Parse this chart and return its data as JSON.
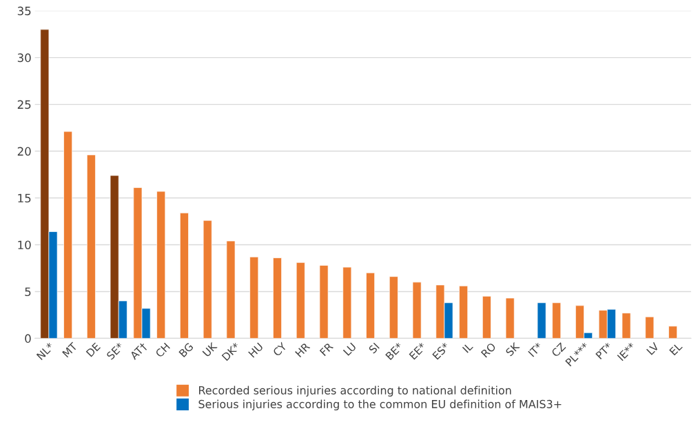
{
  "chart_data": {
    "type": "bar",
    "categories": [
      "NL*",
      "MT",
      "DE",
      "SE*",
      "AT†",
      "CH",
      "BG",
      "UK",
      "DK*",
      "HU",
      "CY",
      "HR",
      "FR",
      "LU",
      "SI",
      "BE*",
      "EE*",
      "ES*",
      "IL",
      "RO",
      "SK",
      "IT*",
      "CZ",
      "PL***",
      "PT*",
      "IE**",
      "LV",
      "EL"
    ],
    "series": [
      {
        "name": "Recorded serious injuries according to national definition",
        "color": "#ed7d31",
        "colors": [
          "#843c0c",
          "#ed7d31",
          "#ed7d31",
          "#843c0c",
          "#ed7d31",
          "#ed7d31",
          "#ed7d31",
          "#ed7d31",
          "#ed7d31",
          "#ed7d31",
          "#ed7d31",
          "#ed7d31",
          "#ed7d31",
          "#ed7d31",
          "#ed7d31",
          "#ed7d31",
          "#ed7d31",
          "#ed7d31",
          "#ed7d31",
          "#ed7d31",
          "#ed7d31",
          "#ed7d31",
          "#ed7d31",
          "#ed7d31",
          "#ed7d31",
          "#ed7d31",
          "#ed7d31",
          "#ed7d31"
        ],
        "values": [
          33.0,
          22.1,
          19.6,
          17.4,
          16.1,
          15.7,
          13.4,
          12.6,
          10.4,
          8.7,
          8.6,
          8.1,
          7.8,
          7.6,
          7.0,
          6.6,
          6.0,
          5.7,
          5.6,
          4.5,
          4.3,
          null,
          3.8,
          3.5,
          3.0,
          2.7,
          2.3,
          1.3
        ]
      },
      {
        "name": "Serious injuries according to the common EU definition of MAIS3+",
        "color": "#0070c0",
        "values": [
          11.4,
          null,
          null,
          4.0,
          3.2,
          null,
          null,
          null,
          null,
          null,
          null,
          null,
          null,
          null,
          null,
          null,
          null,
          3.8,
          null,
          null,
          null,
          3.8,
          null,
          0.6,
          3.1,
          null,
          null,
          null
        ]
      }
    ],
    "ylim": [
      0,
      35
    ],
    "yticks": [
      0,
      5,
      10,
      15,
      20,
      25,
      30,
      35
    ],
    "grid": "y",
    "legend": "bottom"
  }
}
